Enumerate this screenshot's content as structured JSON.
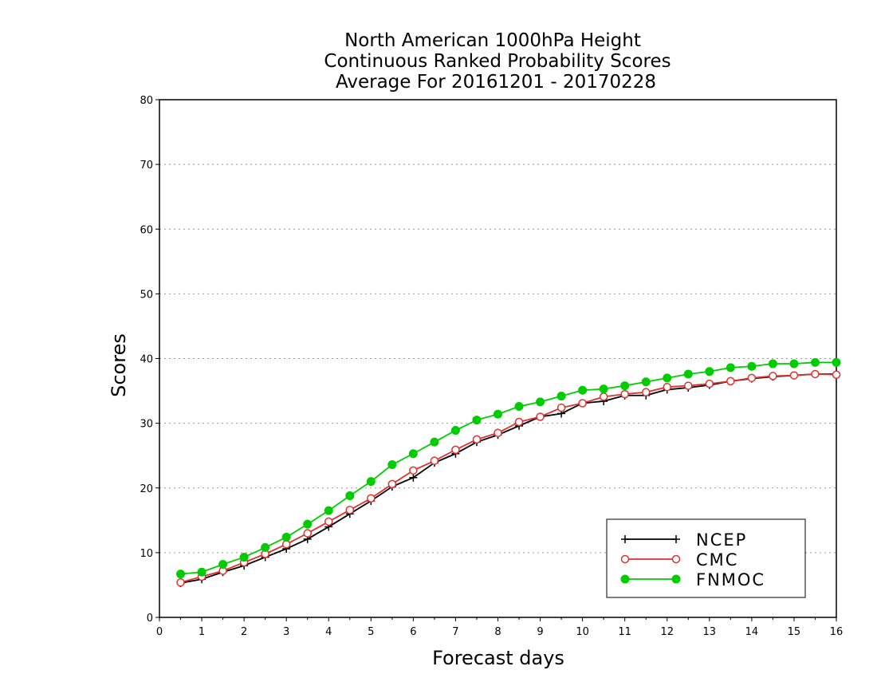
{
  "chart_data": {
    "type": "line",
    "title_lines": [
      "North American 1000hPa Height",
      "Continuous Ranked Probability Scores",
      "Average For 20161201 - 20170228"
    ],
    "xlabel": "Forecast days",
    "ylabel": "Scores",
    "xlim": [
      0,
      16
    ],
    "ylim": [
      0,
      80
    ],
    "x_ticks": [
      "0",
      "1",
      "2",
      "3",
      "4",
      "5",
      "6",
      "7",
      "8",
      "9",
      "10",
      "11",
      "12",
      "13",
      "14",
      "15",
      "16"
    ],
    "y_ticks": [
      "0",
      "10",
      "20",
      "30",
      "40",
      "50",
      "60",
      "70",
      "80"
    ],
    "grid": "horizontal dotted",
    "legend_position": "bottom-right",
    "x": [
      0.5,
      1,
      1.5,
      2,
      2.5,
      3,
      3.5,
      4,
      4.5,
      5,
      5.5,
      6,
      6.5,
      7,
      7.5,
      8,
      8.5,
      9,
      9.5,
      10,
      10.5,
      11,
      11.5,
      12,
      12.5,
      13,
      13.5,
      14,
      14.5,
      15,
      15.5,
      16
    ],
    "series": [
      {
        "name": "NCEP",
        "color": "#000000",
        "marker": "plus",
        "values": [
          5.3,
          5.9,
          7.0,
          8.0,
          9.3,
          10.6,
          12.1,
          14.0,
          16.0,
          18.0,
          20.2,
          21.6,
          23.9,
          25.3,
          27.1,
          28.2,
          29.6,
          31.0,
          31.5,
          33.1,
          33.4,
          34.3,
          34.3,
          35.2,
          35.5,
          35.9,
          36.5,
          36.9,
          37.2,
          37.4,
          37.6,
          37.6
        ]
      },
      {
        "name": "CMC",
        "color": "#e03030",
        "marker": "open-circle",
        "values": [
          5.4,
          6.3,
          7.2,
          8.5,
          9.8,
          11.3,
          13.0,
          14.8,
          16.6,
          18.4,
          20.6,
          22.7,
          24.2,
          25.9,
          27.5,
          28.5,
          30.2,
          31.0,
          32.4,
          33.1,
          34.1,
          34.5,
          34.8,
          35.6,
          35.8,
          36.1,
          36.5,
          37.0,
          37.3,
          37.4,
          37.6,
          37.5
        ]
      },
      {
        "name": "FNMOC",
        "color": "#00cc00",
        "marker": "filled-circle",
        "values": [
          6.7,
          7.0,
          8.2,
          9.3,
          10.8,
          12.4,
          14.4,
          16.5,
          18.8,
          21.0,
          23.6,
          25.3,
          27.1,
          28.9,
          30.5,
          31.4,
          32.6,
          33.3,
          34.2,
          35.1,
          35.3,
          35.8,
          36.4,
          37.0,
          37.6,
          38.0,
          38.6,
          38.8,
          39.2,
          39.2,
          39.4,
          39.4
        ]
      }
    ]
  }
}
